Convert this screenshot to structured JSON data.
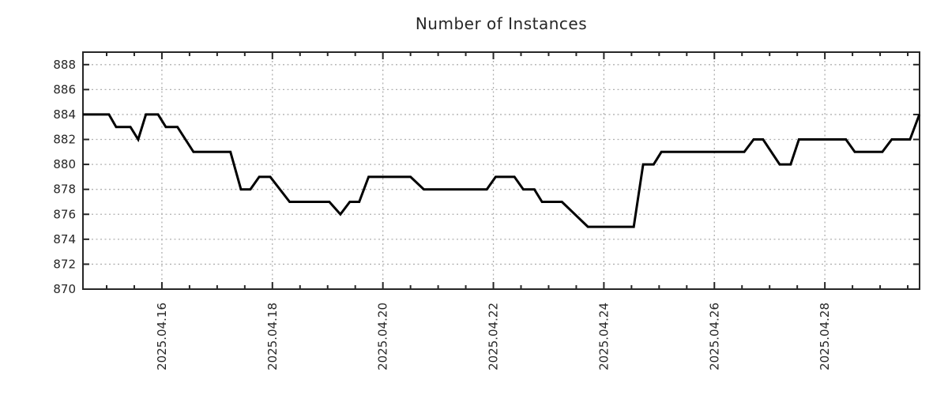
{
  "chart_data": {
    "type": "line",
    "title": "Number of Instances",
    "background": "#ffffff",
    "axis_color": "#262626",
    "grid_color": "#b0b0b0",
    "grid_style": "dashed",
    "legend": "none",
    "x_axis": {
      "kind": "time",
      "unit": "days-from-left-edge",
      "range_days": [
        0,
        15.143
      ],
      "major_ticks": [
        {
          "pos": 1.429,
          "label": "2025.04.16"
        },
        {
          "pos": 3.429,
          "label": "2025.04.18"
        },
        {
          "pos": 5.429,
          "label": "2025.04.20"
        },
        {
          "pos": 7.429,
          "label": "2025.04.22"
        },
        {
          "pos": 9.429,
          "label": "2025.04.24"
        },
        {
          "pos": 11.429,
          "label": "2025.04.26"
        },
        {
          "pos": 13.429,
          "label": "2025.04.28"
        }
      ],
      "minor_tick_start": 0.429,
      "minor_tick_step": 0.5,
      "label_rotation_deg": -90
    },
    "y_axis": {
      "range": [
        870,
        889
      ],
      "tick_labels": [
        870,
        872,
        874,
        876,
        878,
        880,
        882,
        884,
        886,
        888
      ]
    },
    "series": [
      {
        "name": "instances",
        "color": "#000000",
        "line_width": 3,
        "points": [
          [
            0.0,
            884
          ],
          [
            0.47,
            884
          ],
          [
            0.6,
            883
          ],
          [
            0.86,
            883
          ],
          [
            1.0,
            882
          ],
          [
            1.14,
            884
          ],
          [
            1.36,
            884
          ],
          [
            1.5,
            883
          ],
          [
            1.71,
            883
          ],
          [
            2.0,
            881
          ],
          [
            2.67,
            881
          ],
          [
            2.86,
            878
          ],
          [
            3.03,
            878
          ],
          [
            3.19,
            879
          ],
          [
            3.39,
            879
          ],
          [
            3.74,
            877
          ],
          [
            4.46,
            877
          ],
          [
            4.66,
            876
          ],
          [
            4.83,
            877
          ],
          [
            5.0,
            877
          ],
          [
            5.17,
            879
          ],
          [
            5.93,
            879
          ],
          [
            6.17,
            878
          ],
          [
            7.31,
            878
          ],
          [
            7.47,
            879
          ],
          [
            7.81,
            879
          ],
          [
            7.97,
            878
          ],
          [
            8.17,
            878
          ],
          [
            8.31,
            877
          ],
          [
            8.67,
            877
          ],
          [
            9.14,
            875
          ],
          [
            9.97,
            875
          ],
          [
            10.14,
            880
          ],
          [
            10.33,
            880
          ],
          [
            10.47,
            881
          ],
          [
            11.97,
            881
          ],
          [
            12.14,
            882
          ],
          [
            12.31,
            882
          ],
          [
            12.61,
            880
          ],
          [
            12.81,
            880
          ],
          [
            12.96,
            882
          ],
          [
            13.81,
            882
          ],
          [
            13.97,
            881
          ],
          [
            14.47,
            881
          ],
          [
            14.64,
            882
          ],
          [
            14.97,
            882
          ],
          [
            15.14,
            884
          ]
        ]
      }
    ]
  }
}
